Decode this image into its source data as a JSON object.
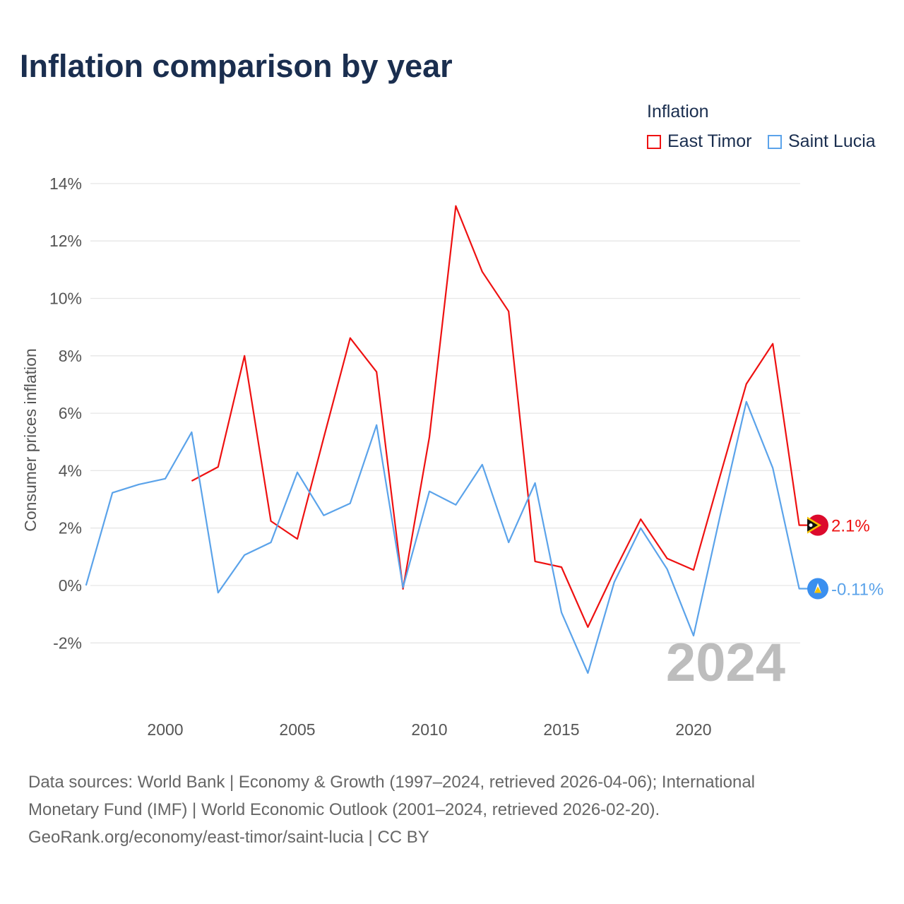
{
  "title": "Inflation comparison by year",
  "legend": {
    "title": "Inflation",
    "items": [
      {
        "label": "East Timor",
        "color": "#ee1111"
      },
      {
        "label": "Saint Lucia",
        "color": "#5ba3ea"
      }
    ]
  },
  "source": {
    "line1": "Data sources: World Bank | Economy & Growth (1997–2024, retrieved 2026-04-06); International",
    "line2": "Monetary Fund (IMF) | World Economic Outlook (2001–2024, retrieved 2026-02-20).",
    "line3": "GeoRank.org/economy/east-timor/saint-lucia | CC BY"
  },
  "chart_data": {
    "type": "line",
    "title": "Inflation comparison by year",
    "xlabel": "",
    "ylabel": "Consumer prices inflation",
    "xlim": [
      1997,
      2024
    ],
    "ylim": [
      -4,
      14
    ],
    "yticks": [
      -2,
      0,
      2,
      4,
      6,
      8,
      10,
      12,
      14
    ],
    "ytick_labels": [
      "-2%",
      "0%",
      "2%",
      "4%",
      "6%",
      "8%",
      "10%",
      "12%",
      "14%"
    ],
    "xticks": [
      2000,
      2005,
      2010,
      2015,
      2020
    ],
    "xtick_labels": [
      "2000",
      "2005",
      "2010",
      "2015",
      "2020"
    ],
    "year_watermark": "2024",
    "series": [
      {
        "name": "East Timor",
        "color": "#ee1111",
        "end_label": "2.1%",
        "x": [
          2001,
          2002,
          2003,
          2004,
          2005,
          2006,
          2007,
          2008,
          2009,
          2010,
          2011,
          2012,
          2013,
          2014,
          2015,
          2016,
          2017,
          2018,
          2019,
          2020,
          2021,
          2022,
          2023,
          2024
        ],
        "values": [
          3.64,
          4.13,
          8.0,
          2.24,
          1.62,
          5.15,
          8.62,
          7.44,
          -0.12,
          5.17,
          13.22,
          10.93,
          9.55,
          0.84,
          0.64,
          -1.45,
          0.49,
          2.31,
          0.94,
          0.54,
          3.8,
          7.02,
          8.42,
          2.1
        ]
      },
      {
        "name": "Saint Lucia",
        "color": "#5ba3ea",
        "end_label": "-0.11%",
        "x": [
          1997,
          1998,
          1999,
          2000,
          2001,
          2002,
          2003,
          2004,
          2005,
          2006,
          2007,
          2008,
          2009,
          2010,
          2011,
          2012,
          2013,
          2014,
          2015,
          2016,
          2017,
          2018,
          2019,
          2020,
          2021,
          2022,
          2023,
          2024
        ],
        "values": [
          0,
          3.23,
          3.52,
          3.72,
          5.34,
          -0.25,
          1.06,
          1.5,
          3.94,
          2.44,
          2.86,
          5.59,
          -0.07,
          3.28,
          2.81,
          4.21,
          1.5,
          3.57,
          -0.94,
          -3.05,
          0.12,
          2.0,
          0.57,
          -1.75,
          2.4,
          6.4,
          4.09,
          -0.11
        ]
      }
    ]
  }
}
